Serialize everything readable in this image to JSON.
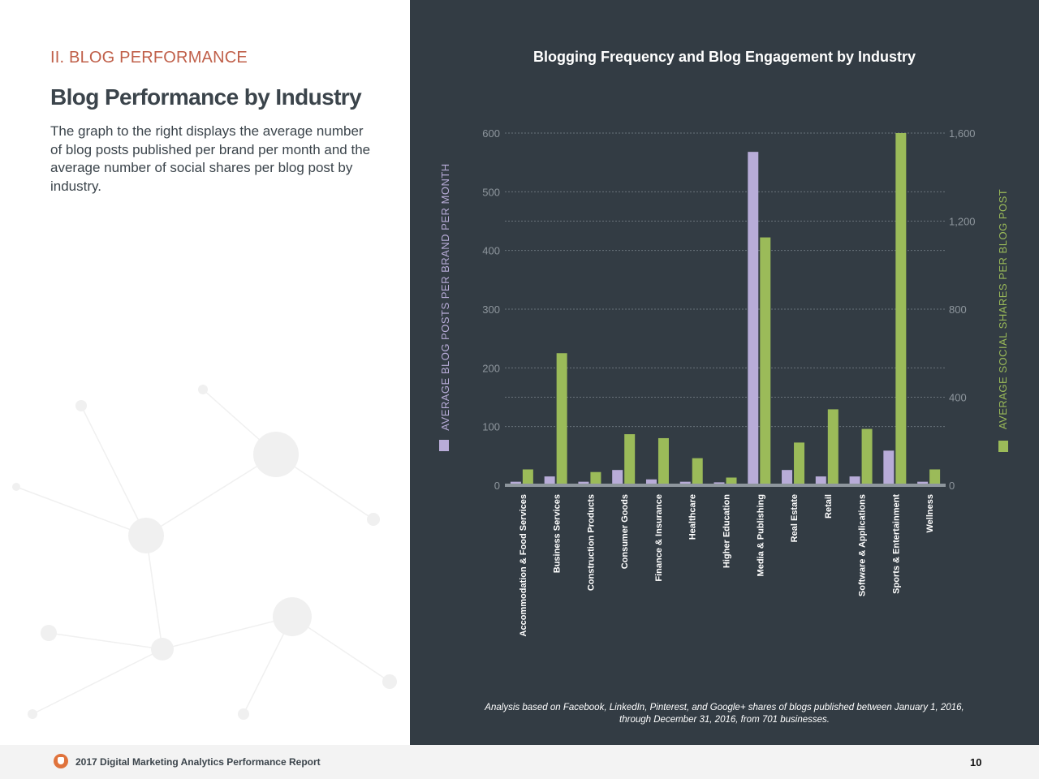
{
  "left": {
    "section_label": "II. BLOG PERFORMANCE",
    "heading": "Blog Performance by Industry",
    "description": "The graph to the right displays the average number of blog posts published per brand per month and the average number of social shares per blog post by industry."
  },
  "footer": {
    "report_title": "2017 Digital Marketing Analytics Performance Report",
    "page_number": "10"
  },
  "chart_data": {
    "type": "bar",
    "title": "Blogging Frequency and Blog Engagement by Industry",
    "categories": [
      "Accommodation & Food Services",
      "Business Services",
      "Construction Products",
      "Consumer Goods",
      "Finance & Insurance",
      "Healthcare",
      "Higher Education",
      "Media & Publishing",
      "Real Estate",
      "Retail",
      "Software & Applications",
      "Sports & Entertainment",
      "Wellness"
    ],
    "series": [
      {
        "axis": "left",
        "color": "#b8acd8",
        "values": [
          6,
          15,
          6,
          26,
          10,
          6,
          5,
          568,
          26,
          15,
          15,
          59,
          6
        ]
      },
      {
        "axis": "right",
        "color": "#9bbb59",
        "values": [
          72,
          600,
          60,
          232,
          214,
          123,
          35,
          1126,
          194,
          345,
          256,
          1600,
          72
        ]
      }
    ],
    "ylabel_left": "AVERAGE BLOG POSTS PER BRAND PER MONTH",
    "ylabel_right": "AVERAGE SOCIAL SHARES PER BLOG POST",
    "ylim_left": [
      0,
      600
    ],
    "ylim_right": [
      0,
      1600
    ],
    "yticks_left": [
      "0",
      "100",
      "200",
      "300",
      "400",
      "500",
      "600"
    ],
    "yticks_right": [
      "0",
      "400",
      "800",
      "1,200",
      "1,600"
    ],
    "grid": true,
    "footnote": "Analysis based on Facebook, LinkedIn, Pinterest, and Google+ shares of blogs published between January 1, 2016, through December 31, 2016, from 701 businesses."
  }
}
